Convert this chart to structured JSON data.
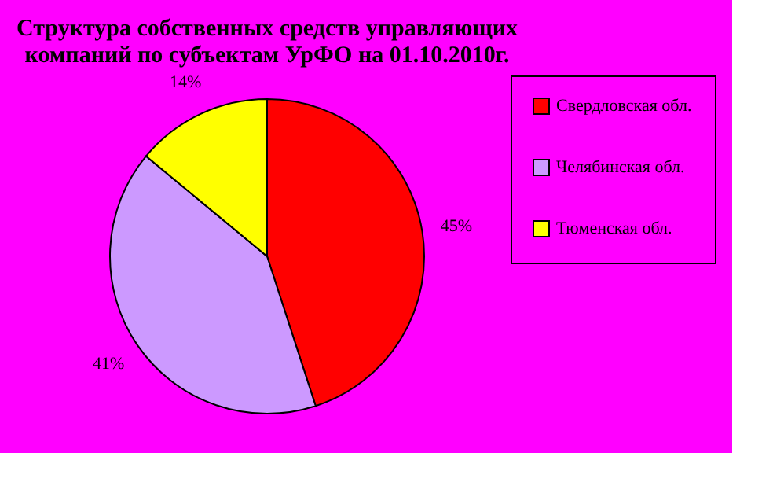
{
  "chart_data": {
    "type": "pie",
    "title": "Структура собственных средств управляющих\nкомпаний по субъектам УрФО на 01.10.2010г.",
    "categories": [
      "Свердловская обл.",
      "Челябинская обл.",
      "Тюменская обл."
    ],
    "values": [
      45,
      41,
      14
    ],
    "colors": [
      "#ff0000",
      "#cc99ff",
      "#ffff00"
    ],
    "value_labels": [
      "45%",
      "41%",
      "14%"
    ],
    "legend": "right"
  }
}
